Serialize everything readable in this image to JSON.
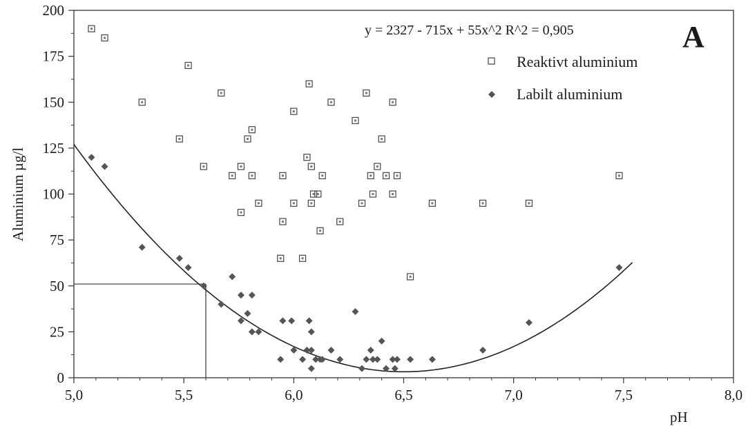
{
  "chart_data": {
    "type": "scatter",
    "panel_label": "A",
    "equation": "y = 2327 - 715x + 55x^2   R^2 = 0,905",
    "xlabel": "pH",
    "ylabel": "Aluminium µg/l",
    "xlim": [
      5.0,
      8.0
    ],
    "ylim": [
      0,
      200
    ],
    "xticks": [
      "5,0",
      "5,5",
      "6,0",
      "6,5",
      "7,0",
      "7,5",
      "8,0"
    ],
    "xtick_values": [
      5.0,
      5.5,
      6.0,
      6.5,
      7.0,
      7.5,
      8.0
    ],
    "yticks": [
      "0",
      "25",
      "50",
      "75",
      "100",
      "125",
      "150",
      "175",
      "200"
    ],
    "ytick_values": [
      0,
      25,
      50,
      75,
      100,
      125,
      150,
      175,
      200
    ],
    "grid": false,
    "legend_position": "top-right",
    "series": [
      {
        "name": "Reaktivt aluminium",
        "marker": "square",
        "points": [
          [
            5.08,
            190
          ],
          [
            5.14,
            185
          ],
          [
            5.31,
            150
          ],
          [
            5.48,
            130
          ],
          [
            5.52,
            170
          ],
          [
            5.59,
            115
          ],
          [
            5.67,
            155
          ],
          [
            5.72,
            110
          ],
          [
            5.76,
            115
          ],
          [
            5.76,
            90
          ],
          [
            5.79,
            130
          ],
          [
            5.81,
            135
          ],
          [
            5.81,
            110
          ],
          [
            5.84,
            95
          ],
          [
            5.94,
            65
          ],
          [
            5.95,
            110
          ],
          [
            5.95,
            85
          ],
          [
            6.0,
            145
          ],
          [
            6.0,
            95
          ],
          [
            6.04,
            65
          ],
          [
            6.06,
            120
          ],
          [
            6.07,
            160
          ],
          [
            6.08,
            115
          ],
          [
            6.08,
            95
          ],
          [
            6.09,
            100
          ],
          [
            6.11,
            100
          ],
          [
            6.12,
            80
          ],
          [
            6.13,
            110
          ],
          [
            6.17,
            150
          ],
          [
            6.21,
            85
          ],
          [
            6.28,
            140
          ],
          [
            6.31,
            95
          ],
          [
            6.33,
            155
          ],
          [
            6.35,
            110
          ],
          [
            6.36,
            100
          ],
          [
            6.38,
            115
          ],
          [
            6.4,
            130
          ],
          [
            6.42,
            110
          ],
          [
            6.45,
            150
          ],
          [
            6.45,
            100
          ],
          [
            6.47,
            110
          ],
          [
            6.53,
            55
          ],
          [
            6.63,
            95
          ],
          [
            6.86,
            95
          ],
          [
            7.07,
            95
          ],
          [
            7.48,
            110
          ]
        ]
      },
      {
        "name": "Labilt aluminium",
        "marker": "diamond",
        "points": [
          [
            5.08,
            120
          ],
          [
            5.14,
            115
          ],
          [
            5.31,
            71
          ],
          [
            5.48,
            65
          ],
          [
            5.52,
            60
          ],
          [
            5.59,
            50
          ],
          [
            5.67,
            40
          ],
          [
            5.72,
            55
          ],
          [
            5.76,
            45
          ],
          [
            5.76,
            31
          ],
          [
            5.79,
            35
          ],
          [
            5.81,
            45
          ],
          [
            5.81,
            25
          ],
          [
            5.84,
            25
          ],
          [
            5.94,
            10
          ],
          [
            5.95,
            31
          ],
          [
            5.99,
            31
          ],
          [
            6.0,
            15
          ],
          [
            6.04,
            10
          ],
          [
            6.06,
            15
          ],
          [
            6.07,
            31
          ],
          [
            6.08,
            25
          ],
          [
            6.08,
            15
          ],
          [
            6.08,
            5
          ],
          [
            6.1,
            10
          ],
          [
            6.12,
            10
          ],
          [
            6.13,
            10
          ],
          [
            6.17,
            15
          ],
          [
            6.21,
            10
          ],
          [
            6.28,
            36
          ],
          [
            6.31,
            5
          ],
          [
            6.33,
            10
          ],
          [
            6.35,
            15
          ],
          [
            6.36,
            10
          ],
          [
            6.38,
            10
          ],
          [
            6.4,
            20
          ],
          [
            6.42,
            5
          ],
          [
            6.45,
            10
          ],
          [
            6.46,
            5
          ],
          [
            6.47,
            10
          ],
          [
            6.53,
            10
          ],
          [
            6.63,
            10
          ],
          [
            6.86,
            15
          ],
          [
            7.07,
            30
          ],
          [
            7.48,
            60
          ]
        ]
      }
    ],
    "trendline": {
      "type": "polynomial",
      "coefficients": [
        2327,
        -715,
        55
      ],
      "x_range": [
        5.0,
        7.54
      ]
    },
    "reference_lines": {
      "x": 5.6,
      "y": 51
    }
  }
}
